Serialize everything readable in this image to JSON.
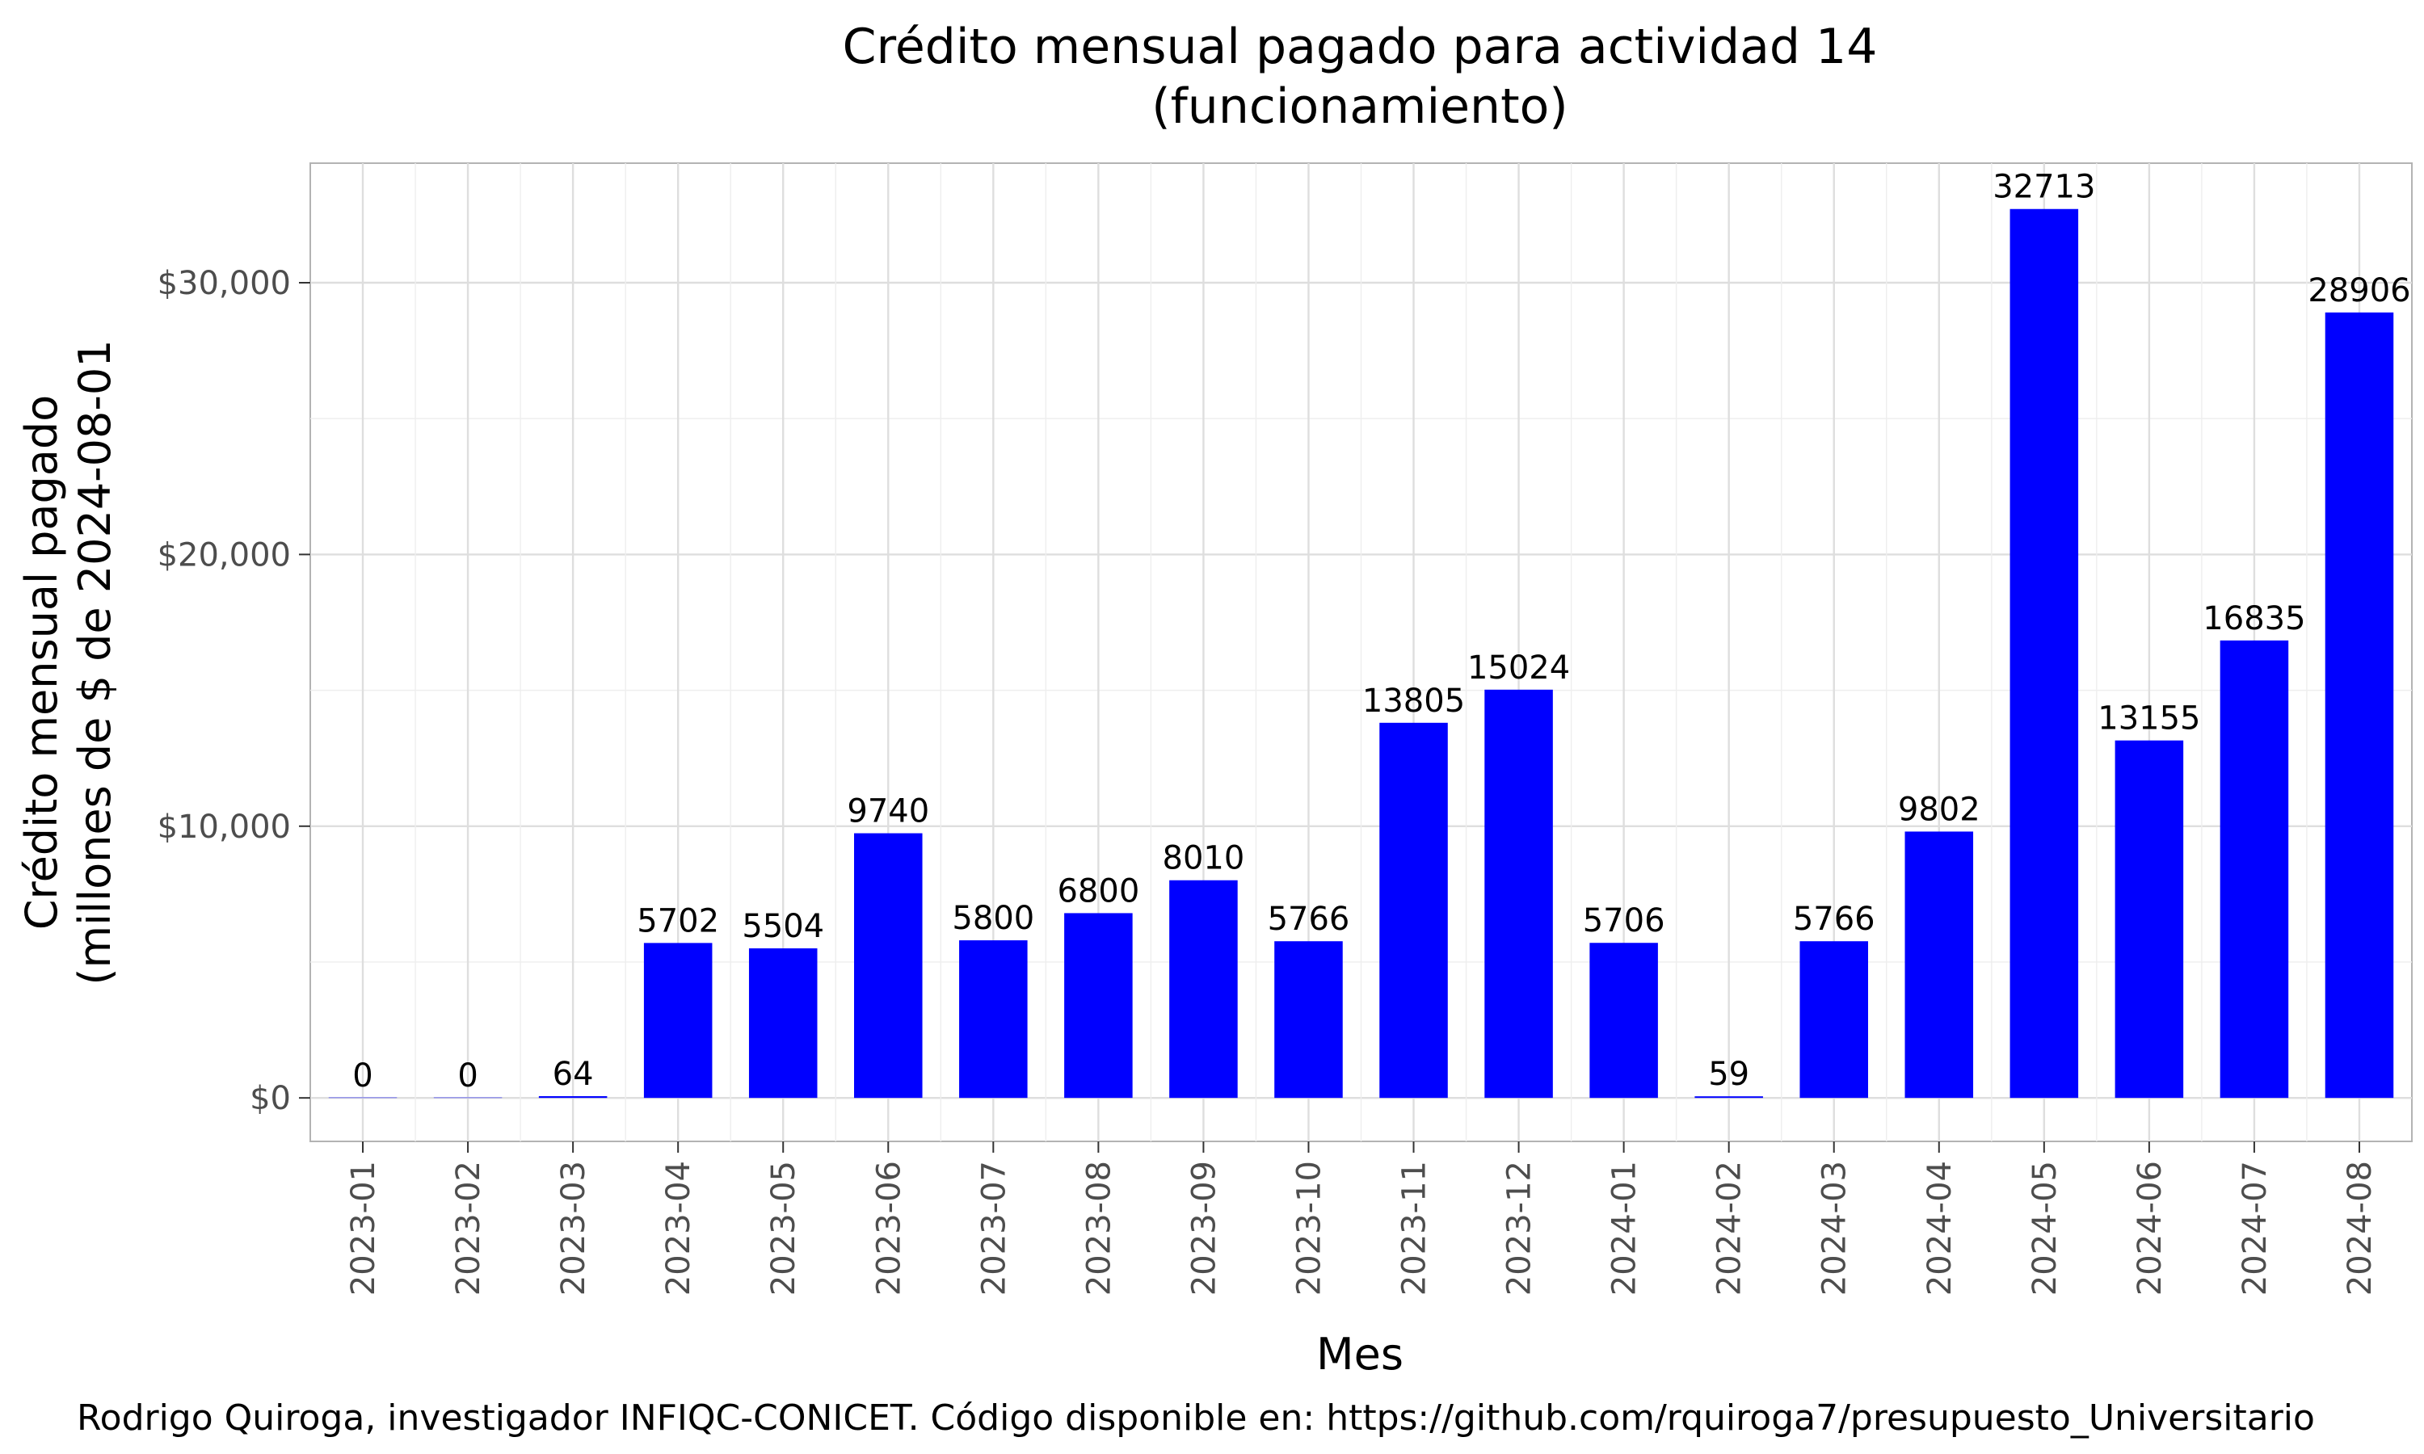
{
  "chart_data": {
    "type": "bar",
    "title": "Crédito mensual pagado para actividad 14",
    "subtitle": "(funcionamiento)",
    "xlabel": "Mes",
    "ylabel_line1": "Crédito mensual pagado",
    "ylabel_line2": "(millones de $ de 2024-08-01",
    "caption": "Rodrigo Quiroga, investigador INFIQC-CONICET. Código disponible en: https://github.com/rquiroga7/presupuesto_Universitario",
    "categories": [
      "2023-01",
      "2023-02",
      "2023-03",
      "2023-04",
      "2023-05",
      "2023-06",
      "2023-07",
      "2023-08",
      "2023-09",
      "2023-10",
      "2023-11",
      "2023-12",
      "2024-01",
      "2024-02",
      "2024-03",
      "2024-04",
      "2024-05",
      "2024-06",
      "2024-07",
      "2024-08"
    ],
    "values": [
      0,
      0,
      64,
      5702,
      5504,
      9740,
      5800,
      6800,
      8010,
      5766,
      13805,
      15024,
      5706,
      59,
      5766,
      9802,
      32713,
      13155,
      16835,
      28906
    ],
    "value_labels": [
      "0",
      "0",
      "64",
      "5702",
      "5504",
      "9740",
      "5800",
      "6800",
      "8010",
      "5766",
      "13805",
      "15024",
      "5706",
      "59",
      "5766",
      "9802",
      "32713",
      "13155",
      "16835",
      "28906"
    ],
    "ylim": [
      -1600,
      34400
    ],
    "yticks": [
      0,
      10000,
      20000,
      30000
    ],
    "ytick_labels": [
      "$0",
      "$10,000",
      "$20,000",
      "$30,000"
    ],
    "bar_color": "#0000ff",
    "grid": true,
    "legend": "none"
  }
}
